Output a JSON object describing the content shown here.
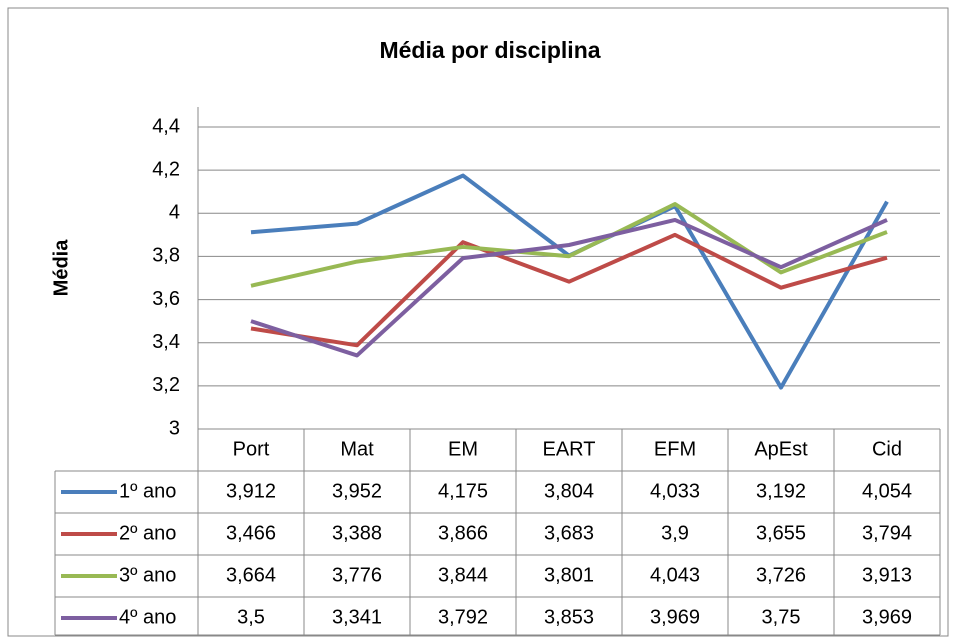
{
  "chart_data": {
    "type": "line",
    "title": "Média por disciplina",
    "y_label": "Média",
    "categories": [
      "Port",
      "Mat",
      "EM",
      "EART",
      "EFM",
      "ApEst",
      "Cid"
    ],
    "series": [
      {
        "name": "1º ano",
        "color": "#4a7ebb",
        "values": [
          3.912,
          3.952,
          4.175,
          3.804,
          4.033,
          3.192,
          4.054
        ],
        "value_labels": [
          "3,912",
          "3,952",
          "4,175",
          "3,804",
          "4,033",
          "3,192",
          "4,054"
        ]
      },
      {
        "name": "2º ano",
        "color": "#be4b48",
        "values": [
          3.466,
          3.388,
          3.866,
          3.683,
          3.9,
          3.655,
          3.794
        ],
        "value_labels": [
          "3,466",
          "3,388",
          "3,866",
          "3,683",
          "3,9",
          "3,655",
          "3,794"
        ]
      },
      {
        "name": "3º ano",
        "color": "#98b954",
        "values": [
          3.664,
          3.776,
          3.844,
          3.801,
          4.043,
          3.726,
          3.913
        ],
        "value_labels": [
          "3,664",
          "3,776",
          "3,844",
          "3,801",
          "4,043",
          "3,726",
          "3,913"
        ]
      },
      {
        "name": "4º ano",
        "color": "#7d5fa0",
        "values": [
          3.5,
          3.341,
          3.792,
          3.853,
          3.969,
          3.75,
          3.969
        ],
        "value_labels": [
          "3,5",
          "3,341",
          "3,792",
          "3,853",
          "3,969",
          "3,75",
          "3,969"
        ]
      }
    ],
    "ylim": [
      3,
      4.4
    ],
    "yticks": [
      3,
      {
        "value": 3.2,
        "label": "3,2"
      },
      {
        "value": 3.4,
        "label": "3,4"
      },
      {
        "value": 3.6,
        "label": "3,6"
      },
      {
        "value": 3.8,
        "label": "3,8"
      },
      4,
      {
        "value": 4.2,
        "label": "4,2"
      },
      {
        "value": 4.4,
        "label": "4,4"
      }
    ],
    "grid": true
  }
}
